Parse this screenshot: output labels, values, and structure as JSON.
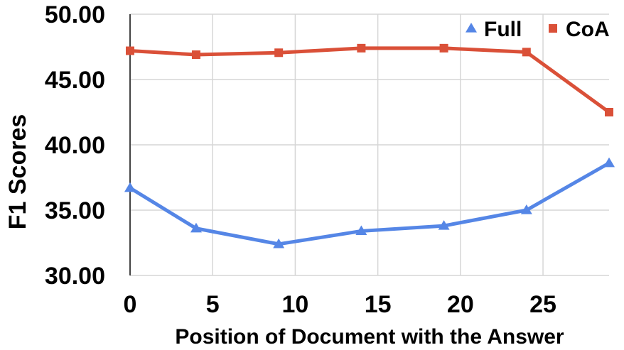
{
  "chart_data": {
    "type": "line",
    "xlabel": "Position of Document with the Answer",
    "ylabel": "F1 Scores",
    "xlim": [
      0,
      29
    ],
    "ylim": [
      30,
      50
    ],
    "x_ticks": [
      0,
      5,
      10,
      15,
      20,
      25
    ],
    "x_tick_labels": [
      "0",
      "5",
      "10",
      "15",
      "20",
      "25"
    ],
    "y_ticks": [
      30,
      35,
      40,
      45,
      50
    ],
    "y_tick_labels": [
      "30.00",
      "35.00",
      "40.00",
      "45.00",
      "50.00"
    ],
    "grid": "vertical",
    "legend_position": "top-right",
    "x": [
      0,
      4,
      9,
      14,
      19,
      24,
      29
    ],
    "series": [
      {
        "name": "Full",
        "marker": "triangle",
        "color": "#5586E6",
        "values": [
          36.7,
          33.6,
          32.4,
          33.4,
          33.8,
          35.0,
          38.6
        ]
      },
      {
        "name": "CoA",
        "marker": "square",
        "color": "#DA5038",
        "values": [
          47.2,
          46.9,
          47.05,
          47.4,
          47.4,
          47.1,
          42.5
        ]
      }
    ]
  }
}
